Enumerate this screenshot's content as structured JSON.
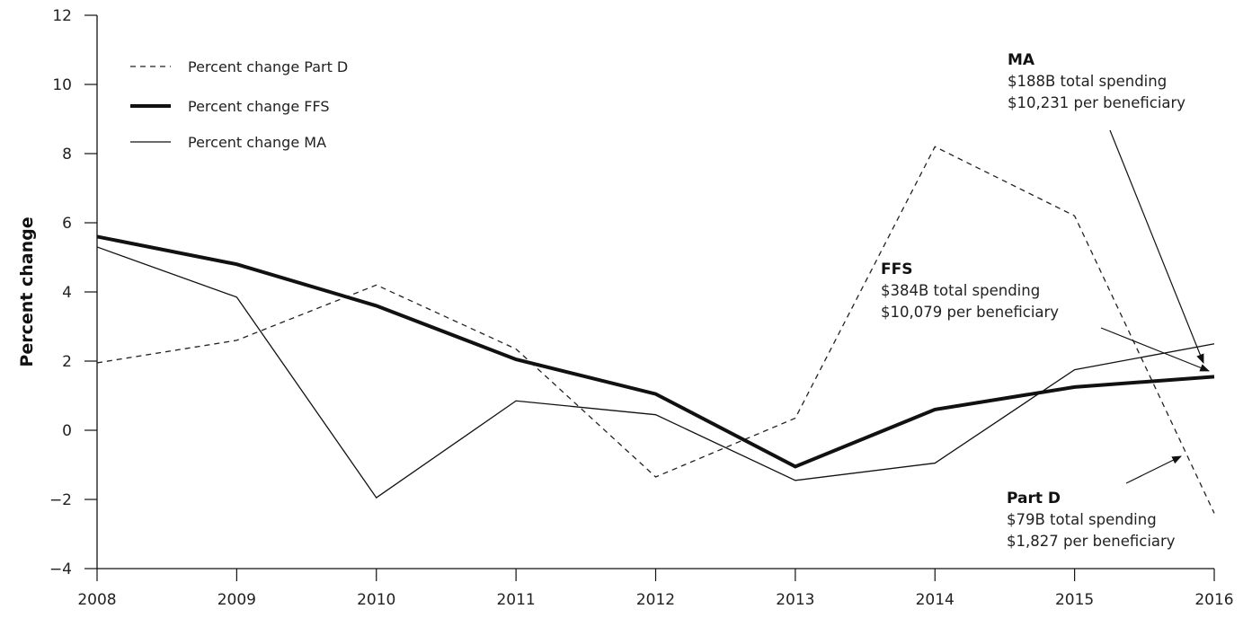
{
  "chart_data": {
    "type": "line",
    "title": "",
    "xlabel": "",
    "ylabel": "Percent change",
    "x": [
      "2008",
      "2009",
      "2010",
      "2011",
      "2012",
      "2013",
      "2014",
      "2015",
      "2016"
    ],
    "ylim": [
      -4,
      12
    ],
    "yticks": [
      "12",
      "10",
      "8",
      "6",
      "4",
      "2",
      "0",
      "−2",
      "−4"
    ],
    "ytick_values": [
      12,
      10,
      8,
      6,
      4,
      2,
      0,
      -2,
      -4
    ],
    "grid": false,
    "legend_position": "top-left",
    "series": [
      {
        "name": "Percent change Part D",
        "style": "dashed",
        "values": [
          1.95,
          2.6,
          4.2,
          2.35,
          -1.35,
          0.35,
          8.2,
          6.2,
          -2.4
        ]
      },
      {
        "name": "Percent change FFS",
        "style": "thick",
        "values": [
          5.6,
          4.8,
          3.6,
          2.05,
          1.05,
          -1.05,
          0.6,
          1.25,
          1.55
        ]
      },
      {
        "name": "Percent change MA",
        "style": "thin",
        "values": [
          5.3,
          3.85,
          -1.95,
          0.85,
          0.45,
          -1.45,
          -0.95,
          1.75,
          2.5
        ]
      }
    ],
    "annotations": [
      {
        "id": "ma",
        "title": "MA",
        "lines": [
          "$188B total spending",
          "$10,231 per beneficiary"
        ]
      },
      {
        "id": "ffs",
        "title": "FFS",
        "lines": [
          "$384B total spending",
          "$10,079 per beneficiary"
        ]
      },
      {
        "id": "partd",
        "title": "Part D",
        "lines": [
          "$79B total spending",
          "$1,827 per beneficiary"
        ]
      }
    ]
  }
}
